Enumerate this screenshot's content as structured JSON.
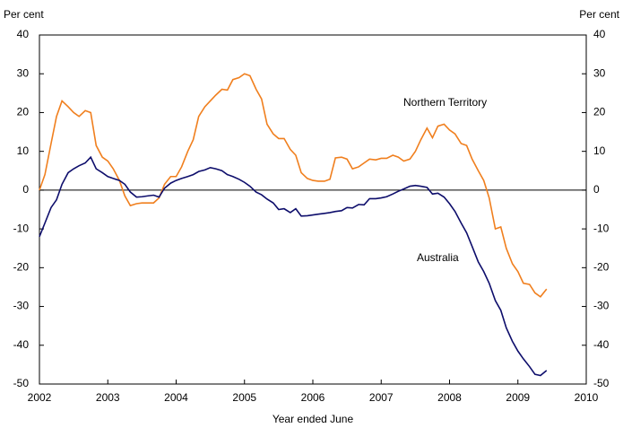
{
  "chart_data": {
    "type": "line",
    "y_label": "Per cent",
    "y2_label": "Per cent",
    "x_label": "Year ended June",
    "x": [
      2002.0,
      2002.08,
      2002.17,
      2002.25,
      2002.33,
      2002.42,
      2002.5,
      2002.58,
      2002.67,
      2002.75,
      2002.83,
      2002.92,
      2003.0,
      2003.08,
      2003.17,
      2003.25,
      2003.33,
      2003.42,
      2003.5,
      2003.58,
      2003.67,
      2003.75,
      2003.83,
      2003.92,
      2004.0,
      2004.08,
      2004.17,
      2004.25,
      2004.33,
      2004.42,
      2004.5,
      2004.58,
      2004.67,
      2004.75,
      2004.83,
      2004.92,
      2005.0,
      2005.08,
      2005.17,
      2005.25,
      2005.33,
      2005.42,
      2005.5,
      2005.58,
      2005.67,
      2005.75,
      2005.83,
      2005.92,
      2006.0,
      2006.08,
      2006.17,
      2006.25,
      2006.33,
      2006.42,
      2006.5,
      2006.58,
      2006.67,
      2006.75,
      2006.83,
      2006.92,
      2007.0,
      2007.08,
      2007.17,
      2007.25,
      2007.33,
      2007.42,
      2007.5,
      2007.58,
      2007.67,
      2007.75,
      2007.83,
      2007.92,
      2008.0,
      2008.08,
      2008.17,
      2008.25,
      2008.33,
      2008.42,
      2008.5,
      2008.58,
      2008.67,
      2008.75,
      2008.83,
      2008.92,
      2009.0,
      2009.08,
      2009.17,
      2009.25,
      2009.33,
      2009.42
    ],
    "series": [
      {
        "name": "Northern Territory",
        "color": "#f07f1e",
        "values": [
          0,
          4,
          12,
          19,
          23,
          21.5,
          20,
          19,
          20.5,
          20,
          11.5,
          8.5,
          7.5,
          5.5,
          2.5,
          -1.5,
          -4,
          -3.5,
          -3.3,
          -3.3,
          -3.3,
          -2,
          1.5,
          3.5,
          3.5,
          6,
          10,
          13,
          19,
          21.5,
          23,
          24.5,
          26,
          25.8,
          28.5,
          29,
          30,
          29.5,
          26,
          23.5,
          17,
          14.5,
          13.3,
          13.3,
          10.5,
          9,
          4.5,
          3,
          2.5,
          2.3,
          2.3,
          2.8,
          8.3,
          8.5,
          8,
          5.5,
          6,
          7,
          8,
          7.8,
          8.2,
          8.2,
          9,
          8.5,
          7.5,
          8,
          10,
          13,
          16,
          13.5,
          16.5,
          17,
          15.5,
          14.5,
          12,
          11.5,
          8,
          5,
          2.5,
          -2,
          -10,
          -9.5,
          -15,
          -19,
          -21,
          -24,
          -24.3,
          -26.5,
          -27.5,
          -25.5
        ]
      },
      {
        "name": "Australia",
        "color": "#0d0d6b",
        "values": [
          -12,
          -8.5,
          -4.5,
          -2.5,
          1.5,
          4.5,
          5.5,
          6.3,
          7,
          8.5,
          5.5,
          4.5,
          3.5,
          3,
          2.5,
          1.5,
          -0.5,
          -1.8,
          -1.7,
          -1.5,
          -1.3,
          -1.8,
          0.5,
          1.8,
          2.5,
          3,
          3.5,
          4,
          4.8,
          5.2,
          5.8,
          5.5,
          5,
          4,
          3.5,
          2.8,
          2,
          1,
          -0.5,
          -1.2,
          -2.3,
          -3.3,
          -5,
          -4.8,
          -5.8,
          -4.8,
          -6.7,
          -6.6,
          -6.4,
          -6.2,
          -6,
          -5.8,
          -5.5,
          -5.3,
          -4.5,
          -4.6,
          -3.7,
          -3.8,
          -2.2,
          -2.2,
          -2,
          -1.7,
          -1,
          -0.3,
          0.3,
          1,
          1.2,
          1,
          0.7,
          -1,
          -0.8,
          -1.8,
          -3.5,
          -5.5,
          -8.5,
          -11,
          -14.5,
          -18.5,
          -21,
          -24,
          -28.5,
          -31,
          -35.5,
          -39,
          -41.5,
          -43.5,
          -45.5,
          -47.5,
          -47.8,
          -46.5
        ]
      }
    ],
    "xlim": [
      2002,
      2010
    ],
    "xticks": [
      2002,
      2003,
      2004,
      2005,
      2006,
      2007,
      2008,
      2009,
      2010
    ],
    "ylim": [
      -50,
      40
    ],
    "yticks": [
      -50,
      -40,
      -30,
      -20,
      -10,
      0,
      10,
      20,
      30,
      40
    ],
    "y2lim": [
      -50,
      40
    ],
    "y2ticks": [
      -50,
      -40,
      -30,
      -20,
      -10,
      0,
      10,
      20,
      30,
      40
    ]
  }
}
